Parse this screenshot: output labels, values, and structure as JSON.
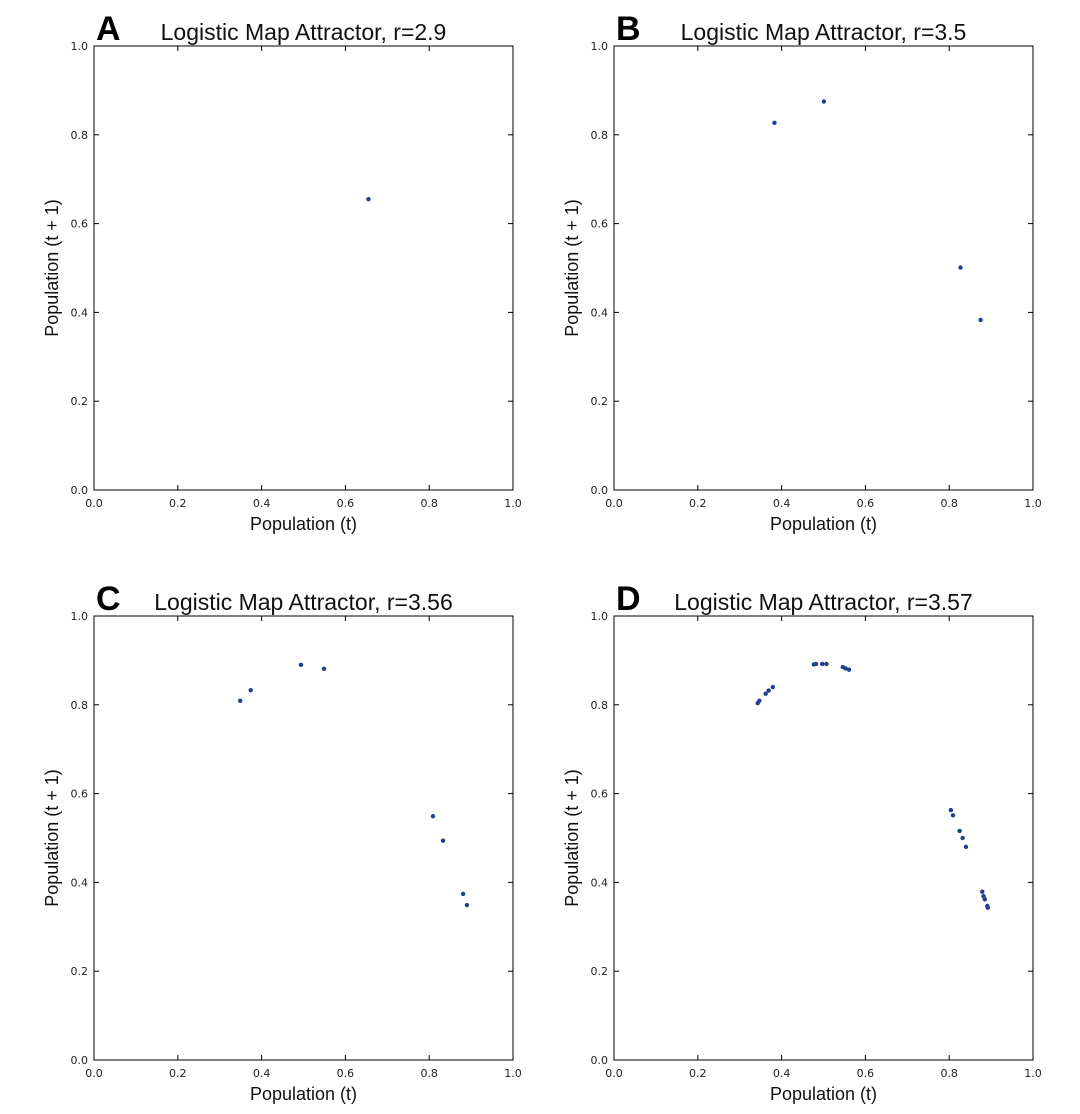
{
  "chart_data": [
    {
      "type": "scatter",
      "panel_letter": "A",
      "title": "Logistic Map Attractor, r=2.9",
      "xlabel": "Population (t)",
      "ylabel": "Population (t + 1)",
      "xlim": [
        0.0,
        1.0
      ],
      "ylim": [
        0.0,
        1.0
      ],
      "x_ticks": [
        "0.0",
        "0.2",
        "0.4",
        "0.6",
        "0.8",
        "1.0"
      ],
      "y_ticks": [
        "0.0",
        "0.2",
        "0.4",
        "0.6",
        "0.8",
        "1.0"
      ],
      "grid": false,
      "color": "#1f3f8f",
      "points": [
        [
          0.655,
          0.655
        ]
      ]
    },
    {
      "type": "scatter",
      "panel_letter": "B",
      "title": "Logistic Map Attractor, r=3.5",
      "xlabel": "Population (t)",
      "ylabel": "Population (t + 1)",
      "xlim": [
        0.0,
        1.0
      ],
      "ylim": [
        0.0,
        1.0
      ],
      "x_ticks": [
        "0.0",
        "0.2",
        "0.4",
        "0.6",
        "0.8",
        "1.0"
      ],
      "y_ticks": [
        "0.0",
        "0.2",
        "0.4",
        "0.6",
        "0.8",
        "1.0"
      ],
      "grid": false,
      "color": "#1f3f8f",
      "points": [
        [
          0.383,
          0.827
        ],
        [
          0.501,
          0.875
        ],
        [
          0.827,
          0.501
        ],
        [
          0.875,
          0.383
        ]
      ]
    },
    {
      "type": "scatter",
      "panel_letter": "C",
      "title": "Logistic Map Attractor, r=3.56",
      "xlabel": "Population (t)",
      "ylabel": "Population (t + 1)",
      "xlim": [
        0.0,
        1.0
      ],
      "ylim": [
        0.0,
        1.0
      ],
      "x_ticks": [
        "0.0",
        "0.2",
        "0.4",
        "0.6",
        "0.8",
        "1.0"
      ],
      "y_ticks": [
        "0.0",
        "0.2",
        "0.4",
        "0.6",
        "0.8",
        "1.0"
      ],
      "grid": false,
      "color": "#1f3f8f",
      "points": [
        [
          0.349,
          0.809
        ],
        [
          0.374,
          0.833
        ],
        [
          0.494,
          0.89
        ],
        [
          0.549,
          0.881
        ],
        [
          0.809,
          0.549
        ],
        [
          0.833,
          0.494
        ],
        [
          0.881,
          0.374
        ],
        [
          0.89,
          0.349
        ]
      ]
    },
    {
      "type": "scatter",
      "panel_letter": "D",
      "title": "Logistic Map Attractor, r=3.57",
      "xlabel": "Population (t)",
      "ylabel": "Population (t + 1)",
      "xlim": [
        0.0,
        1.0
      ],
      "ylim": [
        0.0,
        1.0
      ],
      "x_ticks": [
        "0.0",
        "0.2",
        "0.4",
        "0.6",
        "0.8",
        "1.0"
      ],
      "y_ticks": [
        "0.0",
        "0.2",
        "0.4",
        "0.6",
        "0.8",
        "1.0"
      ],
      "grid": false,
      "color": "#1f3f8f",
      "points": [
        [
          0.343,
          0.804
        ],
        [
          0.347,
          0.809
        ],
        [
          0.362,
          0.825
        ],
        [
          0.369,
          0.832
        ],
        [
          0.379,
          0.84
        ],
        [
          0.477,
          0.891
        ],
        [
          0.482,
          0.892
        ],
        [
          0.497,
          0.892
        ],
        [
          0.507,
          0.892
        ],
        [
          0.546,
          0.885
        ],
        [
          0.553,
          0.882
        ],
        [
          0.561,
          0.879
        ],
        [
          0.804,
          0.563
        ],
        [
          0.809,
          0.551
        ],
        [
          0.825,
          0.516
        ],
        [
          0.832,
          0.5
        ],
        [
          0.84,
          0.48
        ],
        [
          0.879,
          0.379
        ],
        [
          0.882,
          0.369
        ],
        [
          0.885,
          0.362
        ],
        [
          0.891,
          0.347
        ],
        [
          0.892,
          0.343
        ]
      ]
    }
  ]
}
